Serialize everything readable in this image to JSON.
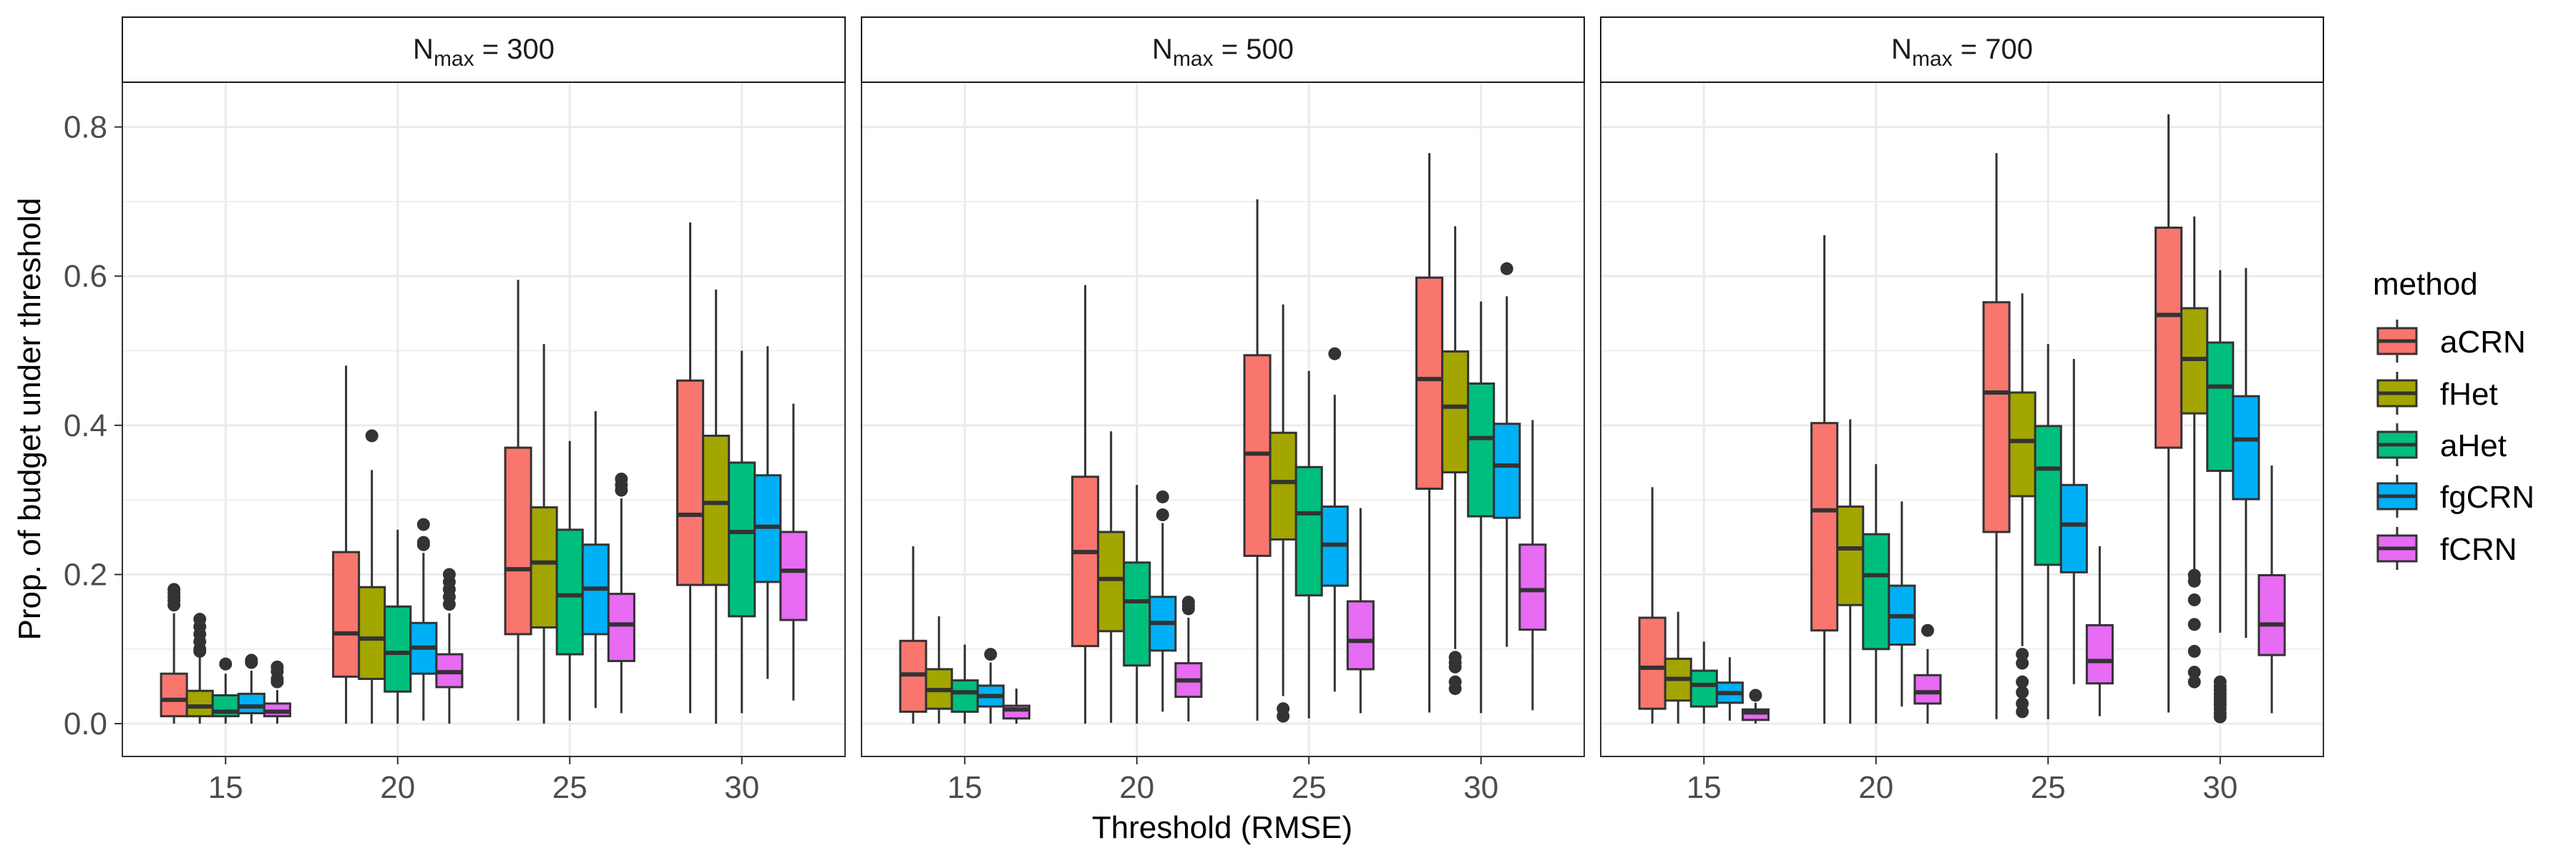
{
  "chart_data": {
    "type": "boxplot",
    "xlabel": "Threshold (RMSE)",
    "ylabel": "Prop. of budget under threshold",
    "categories": [
      "15",
      "20",
      "25",
      "30"
    ],
    "ylim": [
      -0.044,
      0.86
    ],
    "yticks": [
      0.0,
      0.2,
      0.4,
      0.6,
      0.8
    ],
    "ytick_labels": [
      "0.0",
      "0.2",
      "0.4",
      "0.6",
      "0.8"
    ],
    "grid": true,
    "legend": {
      "title": "method",
      "position": "right",
      "entries": [
        "aCRN",
        "fHet",
        "aHet",
        "fgCRN",
        "fCRN"
      ],
      "colors": [
        "#F8766D",
        "#A3A500",
        "#00BF7D",
        "#00B0F6",
        "#E76BF3"
      ]
    },
    "box_format": [
      "whisker_low",
      "q1",
      "median",
      "q3",
      "whisker_high",
      "outliers"
    ],
    "panels": [
      {
        "strip": {
          "base": "N",
          "sub": "max",
          "rest": " = 300"
        },
        "boxes": {
          "15": [
            [
              0,
              0.01,
              0.032,
              0.067,
              0.148,
              [
                0.159,
                0.165,
                0.17,
                0.175,
                0.18
              ]
            ],
            [
              0,
              0.01,
              0.023,
              0.044,
              0.089,
              [
                0.097,
                0.1,
                0.11,
                0.12,
                0.13,
                0.14
              ]
            ],
            [
              0,
              0.01,
              0.016,
              0.038,
              0.067,
              [
                0.08
              ]
            ],
            [
              0,
              0.014,
              0.023,
              0.04,
              0.071,
              [
                0.082,
                0.085
              ]
            ],
            [
              0,
              0.01,
              0.016,
              0.027,
              0.045,
              [
                0.056,
                0.06,
                0.07,
                0.076
              ]
            ]
          ],
          "20": [
            [
              0,
              0.063,
              0.121,
              0.23,
              0.48,
              []
            ],
            [
              0,
              0.06,
              0.114,
              0.183,
              0.34,
              [
                0.386
              ]
            ],
            [
              0,
              0.043,
              0.095,
              0.157,
              0.26,
              []
            ],
            [
              0.004,
              0.067,
              0.102,
              0.135,
              0.229,
              [
                0.24,
                0.243,
                0.267
              ]
            ],
            [
              0,
              0.049,
              0.069,
              0.093,
              0.148,
              [
                0.16,
                0.17,
                0.18,
                0.19,
                0.2
              ]
            ]
          ],
          "25": [
            [
              0.004,
              0.12,
              0.207,
              0.37,
              0.595,
              []
            ],
            [
              0,
              0.129,
              0.216,
              0.29,
              0.509,
              []
            ],
            [
              0.004,
              0.093,
              0.172,
              0.26,
              0.379,
              []
            ],
            [
              0.021,
              0.12,
              0.181,
              0.24,
              0.419,
              []
            ],
            [
              0.014,
              0.084,
              0.133,
              0.174,
              0.302,
              [
                0.313,
                0.32,
                0.328
              ]
            ]
          ],
          "30": [
            [
              0.014,
              0.186,
              0.28,
              0.46,
              0.672,
              []
            ],
            [
              0,
              0.186,
              0.296,
              0.386,
              0.582,
              []
            ],
            [
              0.014,
              0.144,
              0.257,
              0.35,
              0.5,
              []
            ],
            [
              0.06,
              0.19,
              0.264,
              0.333,
              0.506,
              []
            ],
            [
              0.031,
              0.139,
              0.205,
              0.257,
              0.429,
              []
            ]
          ]
        }
      },
      {
        "strip": {
          "base": "N",
          "sub": "max",
          "rest": " = 500"
        },
        "boxes": {
          "15": [
            [
              0,
              0.016,
              0.066,
              0.111,
              0.238,
              []
            ],
            [
              0,
              0.02,
              0.045,
              0.073,
              0.144,
              []
            ],
            [
              0,
              0.016,
              0.042,
              0.058,
              0.106,
              []
            ],
            [
              0,
              0.023,
              0.037,
              0.051,
              0.082,
              [
                0.093
              ]
            ],
            [
              0,
              0.007,
              0.019,
              0.024,
              0.047,
              []
            ]
          ],
          "20": [
            [
              0,
              0.104,
              0.23,
              0.331,
              0.588,
              []
            ],
            [
              0.001,
              0.124,
              0.194,
              0.257,
              0.392,
              []
            ],
            [
              0,
              0.078,
              0.164,
              0.216,
              0.32,
              []
            ],
            [
              0.016,
              0.098,
              0.135,
              0.17,
              0.269,
              [
                0.28,
                0.304
              ]
            ],
            [
              0.003,
              0.036,
              0.058,
              0.081,
              0.142,
              [
                0.154,
                0.158,
                0.163
              ]
            ]
          ],
          "25": [
            [
              0.004,
              0.225,
              0.362,
              0.494,
              0.703,
              []
            ],
            [
              0.037,
              0.247,
              0.324,
              0.39,
              0.562,
              [
                0.01,
                0.02
              ]
            ],
            [
              0.007,
              0.172,
              0.282,
              0.344,
              0.473,
              []
            ],
            [
              0.043,
              0.185,
              0.24,
              0.291,
              0.441,
              [
                0.496
              ]
            ],
            [
              0.014,
              0.073,
              0.111,
              0.164,
              0.289,
              []
            ]
          ],
          "30": [
            [
              0.015,
              0.315,
              0.462,
              0.598,
              0.765,
              []
            ],
            [
              0.1,
              0.337,
              0.425,
              0.499,
              0.667,
              [
                0.047,
                0.056,
                0.076,
                0.082,
                0.089
              ]
            ],
            [
              0.014,
              0.278,
              0.383,
              0.456,
              0.566,
              []
            ],
            [
              0.103,
              0.276,
              0.346,
              0.402,
              0.573,
              [
                0.61
              ]
            ],
            [
              0.018,
              0.126,
              0.179,
              0.24,
              0.407,
              []
            ]
          ]
        }
      },
      {
        "strip": {
          "base": "N",
          "sub": "max",
          "rest": " = 700"
        },
        "boxes": {
          "15": [
            [
              0,
              0.02,
              0.075,
              0.142,
              0.317,
              []
            ],
            [
              0,
              0.031,
              0.06,
              0.087,
              0.15,
              []
            ],
            [
              0,
              0.023,
              0.052,
              0.071,
              0.11,
              []
            ],
            [
              0.004,
              0.028,
              0.041,
              0.055,
              0.089,
              []
            ],
            [
              0,
              0.005,
              0.015,
              0.019,
              0.028,
              [
                0.038
              ]
            ]
          ],
          "20": [
            [
              0,
              0.125,
              0.286,
              0.403,
              0.655,
              []
            ],
            [
              0,
              0.159,
              0.235,
              0.291,
              0.408,
              []
            ],
            [
              0,
              0.1,
              0.199,
              0.254,
              0.348,
              []
            ],
            [
              0.023,
              0.106,
              0.144,
              0.185,
              0.298,
              []
            ],
            [
              0,
              0.027,
              0.042,
              0.065,
              0.1,
              [
                0.125
              ]
            ]
          ],
          "25": [
            [
              0.006,
              0.257,
              0.444,
              0.565,
              0.765,
              []
            ],
            [
              0.104,
              0.305,
              0.379,
              0.444,
              0.577,
              [
                0.016,
                0.027,
                0.042,
                0.056,
                0.081,
                0.093
              ]
            ],
            [
              0.006,
              0.213,
              0.342,
              0.399,
              0.509,
              []
            ],
            [
              0.053,
              0.203,
              0.267,
              0.32,
              0.489,
              []
            ],
            [
              0.01,
              0.054,
              0.084,
              0.132,
              0.238,
              []
            ]
          ],
          "30": [
            [
              0.015,
              0.37,
              0.548,
              0.665,
              0.817,
              []
            ],
            [
              0.207,
              0.416,
              0.489,
              0.557,
              0.68,
              [
                0.056,
                0.069,
                0.097,
                0.133,
                0.166,
                0.191,
                0.199
              ]
            ],
            [
              0.122,
              0.339,
              0.452,
              0.511,
              0.608,
              [
                0.009,
                0.014,
                0.02,
                0.025,
                0.03,
                0.035,
                0.04,
                0.045,
                0.05,
                0.056
              ]
            ],
            [
              0.115,
              0.301,
              0.381,
              0.439,
              0.611,
              []
            ],
            [
              0.014,
              0.092,
              0.133,
              0.199,
              0.346,
              []
            ]
          ]
        }
      }
    ]
  }
}
